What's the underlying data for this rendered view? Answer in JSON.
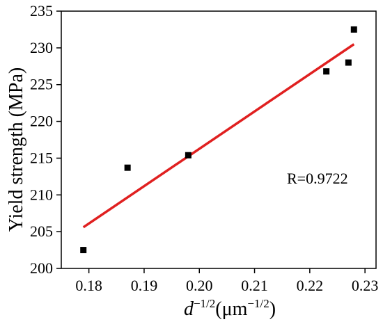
{
  "chart_data": {
    "type": "scatter",
    "title": "",
    "ylabel": "Yield strength (MPa)",
    "xlabel": {
      "base": "d",
      "base_sup": "−1/2",
      "unit_open": "(μm",
      "unit_sup": "−1/2",
      "unit_close": ")"
    },
    "xlim": [
      0.175,
      0.232
    ],
    "ylim": [
      200,
      235
    ],
    "xticks": [
      0.18,
      0.19,
      0.2,
      0.21,
      0.22,
      0.23
    ],
    "xtick_labels": [
      "0.18",
      "0.19",
      "0.20",
      "0.21",
      "0.22",
      "0.23"
    ],
    "yticks": [
      200,
      205,
      210,
      215,
      220,
      225,
      230,
      235
    ],
    "ytick_labels": [
      "200",
      "205",
      "210",
      "215",
      "220",
      "225",
      "230",
      "235"
    ],
    "points": [
      {
        "x": 0.179,
        "y": 202.5
      },
      {
        "x": 0.187,
        "y": 213.7
      },
      {
        "x": 0.198,
        "y": 215.4
      },
      {
        "x": 0.223,
        "y": 226.8
      },
      {
        "x": 0.227,
        "y": 228.0
      },
      {
        "x": 0.228,
        "y": 232.5
      }
    ],
    "fit_line": {
      "x": [
        0.179,
        0.228
      ],
      "y": [
        205.6,
        230.5
      ]
    },
    "annotation": "R=0.9722",
    "grid": false,
    "colors": {
      "points": "#000000",
      "fit_line": "#e02020",
      "axes": "#000000"
    }
  }
}
